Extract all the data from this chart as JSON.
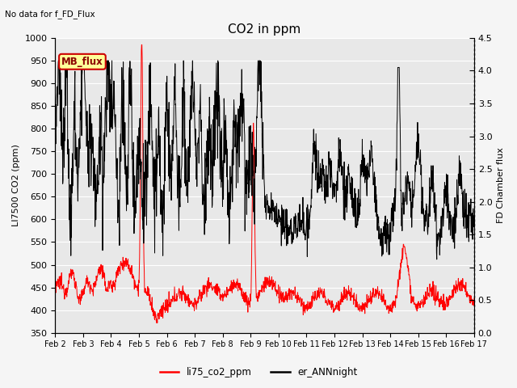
{
  "title": "CO2 in ppm",
  "top_left_text": "No data for f_FD_Flux",
  "ylabel_left": "LI7500 CO2 (ppm)",
  "ylabel_right": "FD Chamber flux",
  "ylim_left": [
    350,
    1000
  ],
  "ylim_right": [
    0.0,
    4.5
  ],
  "yticks_left": [
    350,
    400,
    450,
    500,
    550,
    600,
    650,
    700,
    750,
    800,
    850,
    900,
    950,
    1000
  ],
  "yticks_right": [
    0.0,
    0.5,
    1.0,
    1.5,
    2.0,
    2.5,
    3.0,
    3.5,
    4.0,
    4.5
  ],
  "xticklabels": [
    "Feb 2",
    "Feb 3",
    "Feb 4",
    "Feb 5",
    "Feb 6",
    "Feb 7",
    "Feb 8",
    "Feb 9",
    "Feb 10",
    "Feb 11",
    "Feb 12",
    "Feb 13",
    "Feb 14",
    "Feb 15",
    "Feb 16",
    "Feb 17"
  ],
  "legend_labels": [
    "li75_co2_ppm",
    "er_ANNnight"
  ],
  "legend_colors": [
    "red",
    "black"
  ],
  "line_red_color": "#ff0000",
  "line_black_color": "#000000",
  "fig_bg_color": "#f5f5f5",
  "plot_bg_color": "#e8e8e8",
  "mb_flux_label": "MB_flux",
  "mb_flux_bg": "#ffff99",
  "mb_flux_border": "#cc0000",
  "grid_color": "#ffffff",
  "n_days": 15,
  "pts_per_day": 96,
  "figsize": [
    6.4,
    4.8
  ],
  "dpi": 100
}
